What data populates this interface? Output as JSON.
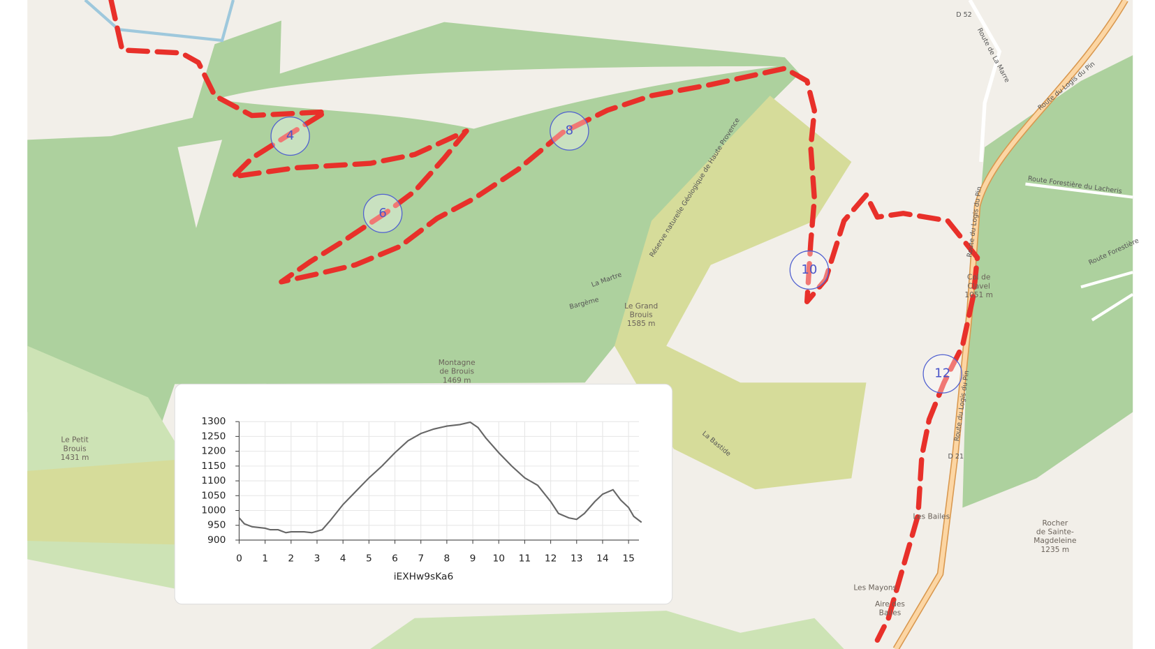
{
  "map_labels": {
    "d52": "D 52",
    "route_marre": "Route de La Marre",
    "route_logis_top": "Route du Logis du Pin",
    "route_logis_mid": "Route du Logis du Pin",
    "route_logis_low": "Route du Logis du Pin",
    "route_lacheris": "Route Forestière du Lacheris",
    "route_forestiere": "Route Forestière",
    "reserve": "Réserve naturelle Géologique de Haute Provence",
    "la_martre": "La Martre",
    "bargeme": "Bargème",
    "grand_brouis": [
      "Le Grand",
      "Brouis",
      "1585 m"
    ],
    "montagne_brouis": [
      "Montagne",
      "de Brouis",
      "1469 m"
    ],
    "petit_brouis": [
      "Le Petit",
      "Brouis",
      "1431 m"
    ],
    "col_clavel": [
      "Col de",
      "Clavel",
      "1051 m"
    ],
    "la_bastide": "La Bastide",
    "d21": "D 21",
    "les_bailes": "Les Bailes",
    "les_mayons": "Les Mayons",
    "aire_bailes": [
      "Aire des",
      "Bailes"
    ],
    "rocher": [
      "Rocher",
      "de Sainte-",
      "Magdeleine",
      "1235 m"
    ]
  },
  "markers": [
    "4",
    "6",
    "8",
    "10",
    "12"
  ],
  "chart_data": {
    "type": "line",
    "xlabel": "iEXHw9sKa6",
    "x": [
      0,
      0.2,
      0.5,
      1,
      1.2,
      1.5,
      1.8,
      2,
      2.5,
      2.8,
      3,
      3.2,
      3.5,
      4,
      4.5,
      5,
      5.5,
      6,
      6.5,
      7,
      7.5,
      8,
      8.5,
      8.9,
      9.2,
      9.5,
      10,
      10.5,
      11,
      11.5,
      12,
      12.3,
      12.7,
      13,
      13.3,
      13.7,
      14,
      14.4,
      14.7,
      15,
      15.2,
      15.5
    ],
    "series": [
      {
        "color": "#666666",
        "values": [
          975,
          955,
          945,
          940,
          935,
          935,
          925,
          928,
          928,
          925,
          930,
          935,
          965,
          1020,
          1065,
          1110,
          1150,
          1195,
          1235,
          1260,
          1275,
          1285,
          1290,
          1298,
          1280,
          1245,
          1195,
          1150,
          1110,
          1085,
          1030,
          990,
          975,
          970,
          990,
          1030,
          1055,
          1070,
          1035,
          1010,
          980,
          960
        ]
      }
    ],
    "xlim": [
      0,
      15.4
    ],
    "ylim": [
      900,
      1300
    ],
    "xticks": [
      0,
      1,
      2,
      3,
      4,
      5,
      6,
      7,
      8,
      9,
      10,
      11,
      12,
      13,
      14,
      15
    ],
    "yticks": [
      900,
      950,
      1000,
      1050,
      1100,
      1150,
      1200,
      1250,
      1300
    ],
    "grid": true
  }
}
